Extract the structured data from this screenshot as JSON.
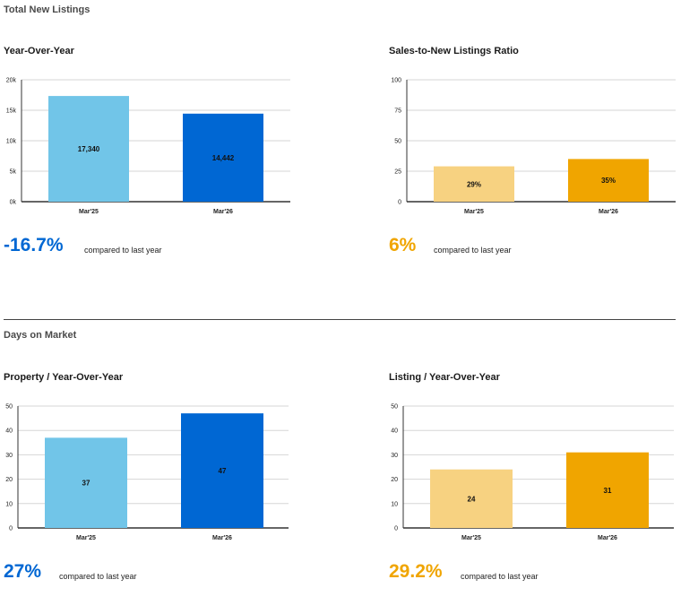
{
  "sections": {
    "listings": "Total New Listings",
    "dom": "Days on Market"
  },
  "compare_text": "compared to last year",
  "colors": {
    "light_blue": "#71c5e8",
    "dark_blue": "#0067d3",
    "light_gold": "#f7d281",
    "gold": "#f0a500"
  },
  "chart_data": [
    {
      "id": "chart1",
      "type": "bar",
      "title": "Year-Over-Year",
      "categories": [
        "Mar'25",
        "Mar'26"
      ],
      "values": [
        17340,
        14442
      ],
      "value_labels": [
        "17,340",
        "14,442"
      ],
      "ylim": [
        0,
        20000
      ],
      "yticks": [
        0,
        5000,
        10000,
        15000,
        20000
      ],
      "ytick_labels": [
        "0k",
        "5k",
        "10k",
        "15k",
        "20k"
      ],
      "colors": [
        "#71c5e8",
        "#0067d3"
      ],
      "change": "-16.7%",
      "change_color": "#0067d3"
    },
    {
      "id": "chart2",
      "type": "bar",
      "title": "Sales-to-New Listings Ratio",
      "categories": [
        "Mar'25",
        "Mar'26"
      ],
      "values": [
        29,
        35
      ],
      "value_labels": [
        "29%",
        "35%"
      ],
      "ylim": [
        0,
        100
      ],
      "yticks": [
        0,
        25,
        50,
        75,
        100
      ],
      "ytick_labels": [
        "0",
        "25",
        "50",
        "75",
        "100"
      ],
      "colors": [
        "#f7d281",
        "#f0a500"
      ],
      "change": "6%",
      "change_color": "#f0a500"
    },
    {
      "id": "chart3",
      "type": "bar",
      "title": "Property / Year-Over-Year",
      "categories": [
        "Mar'25",
        "Mar'26"
      ],
      "values": [
        37,
        47
      ],
      "value_labels": [
        "37",
        "47"
      ],
      "ylim": [
        0,
        50
      ],
      "yticks": [
        0,
        10,
        20,
        30,
        40,
        50
      ],
      "ytick_labels": [
        "0",
        "10",
        "20",
        "30",
        "40",
        "50"
      ],
      "colors": [
        "#71c5e8",
        "#0067d3"
      ],
      "change": "27%",
      "change_color": "#0067d3"
    },
    {
      "id": "chart4",
      "type": "bar",
      "title": "Listing / Year-Over-Year",
      "categories": [
        "Mar'25",
        "Mar'26"
      ],
      "values": [
        24,
        31
      ],
      "value_labels": [
        "24",
        "31"
      ],
      "ylim": [
        0,
        50
      ],
      "yticks": [
        0,
        10,
        20,
        30,
        40,
        50
      ],
      "ytick_labels": [
        "0",
        "10",
        "20",
        "30",
        "40",
        "50"
      ],
      "colors": [
        "#f7d281",
        "#f0a500"
      ],
      "change": "29.2%",
      "change_color": "#f0a500"
    }
  ]
}
